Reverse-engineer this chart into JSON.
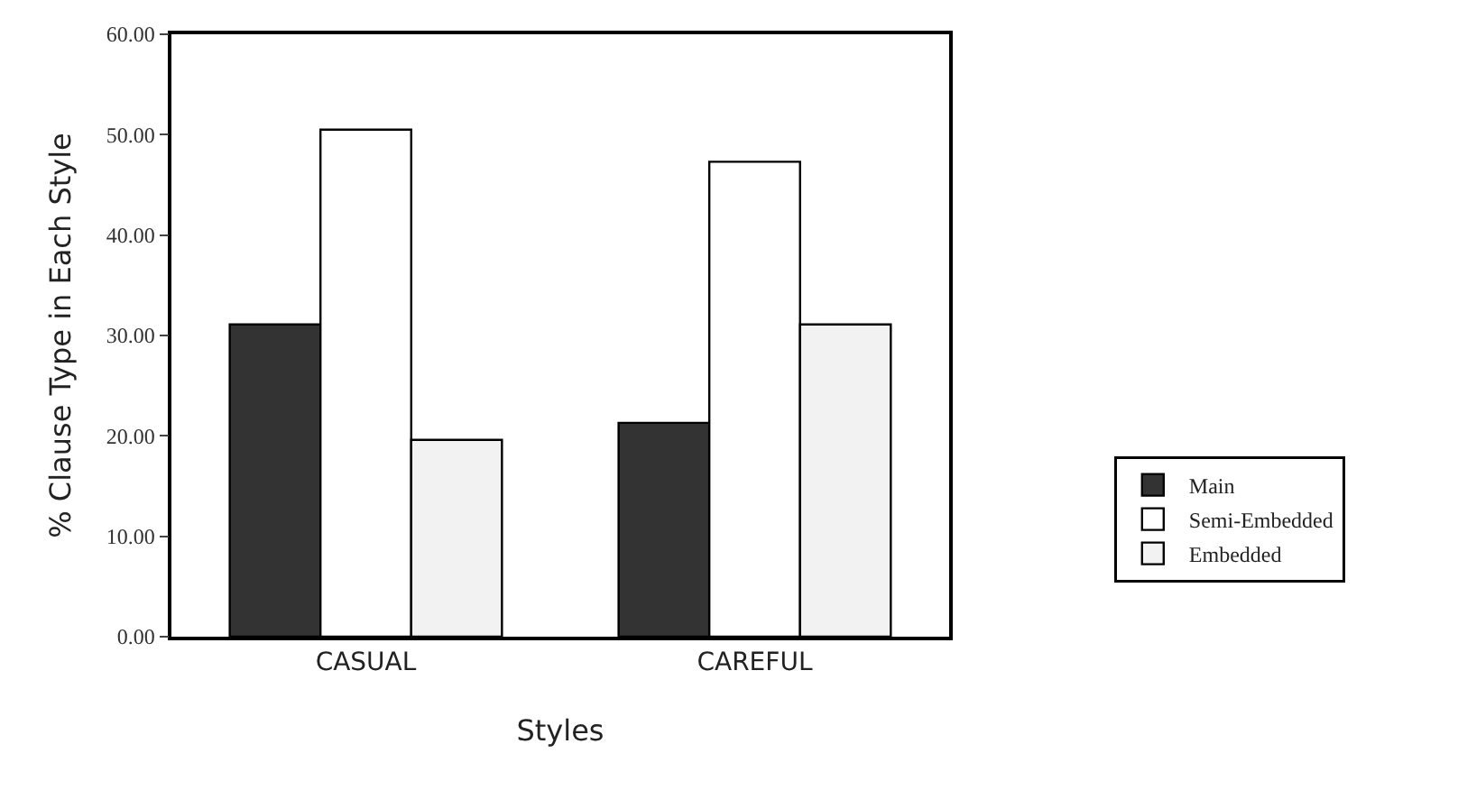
{
  "chart_data": {
    "type": "bar",
    "xlabel": "Styles",
    "ylabel": "% Clause Type in Each Style",
    "categories": [
      "CASUAL",
      "CAREFUL"
    ],
    "series": [
      {
        "name": "Main",
        "color": "#333333",
        "values": [
          31.1,
          21.3
        ]
      },
      {
        "name": "Semi-Embedded",
        "color": "#ffffff",
        "values": [
          50.5,
          47.3
        ]
      },
      {
        "name": "Embedded",
        "color": "#f2f2f2",
        "values": [
          19.6,
          31.1
        ]
      }
    ],
    "ylim": [
      0,
      60
    ],
    "yticks": [
      {
        "value": 0,
        "label": "0.00"
      },
      {
        "value": 10,
        "label": "10.00"
      },
      {
        "value": 20,
        "label": "20.00"
      },
      {
        "value": 30,
        "label": "30.00"
      },
      {
        "value": 40,
        "label": "40.00"
      },
      {
        "value": 50,
        "label": "50.00"
      },
      {
        "value": 60,
        "label": "60.00"
      }
    ],
    "legend": "right"
  }
}
